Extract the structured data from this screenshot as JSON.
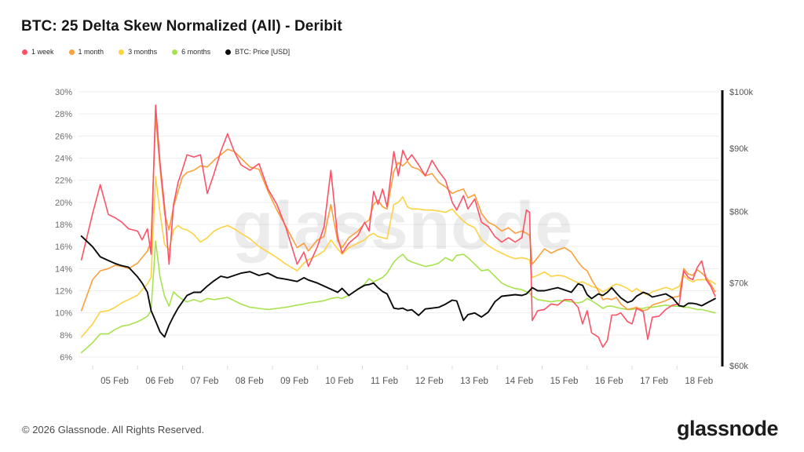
{
  "header": {
    "title": "BTC: 25 Delta Skew Normalized (All) - Deribit"
  },
  "watermark": "glassnode",
  "footer": {
    "copyright": "© 2026 Glassnode. All Rights Reserved.",
    "logo_text": "glassnode"
  },
  "colors": {
    "week1": "#fb5268",
    "month1": "#f9a03c",
    "months3": "#fdd243",
    "months6": "#a7e34e",
    "price": "#0a0a0a",
    "gridline": "#eeeeee",
    "axis_text": "#6e6e6e",
    "x_axis_text": "#555555",
    "tick_mark": "#d9d9d9",
    "watermark_fill": "#000000"
  },
  "chart_data": {
    "type": "line",
    "title": "BTC: 25 Delta Skew Normalized (All) - Deribit",
    "x_unit": "day of February",
    "grid": true,
    "legend_position": "top-left",
    "left_axis": {
      "unit": "%",
      "ticks": [
        30,
        28,
        26,
        24,
        22,
        20,
        18,
        16,
        14,
        12,
        10,
        8,
        6
      ],
      "tick_suffix": "%"
    },
    "right_axis": {
      "unit": "USD",
      "scale": "log",
      "range": [
        60000,
        100000
      ],
      "ticks": [
        {
          "label": "$100k",
          "value": 100000
        },
        {
          "label": "$90k",
          "value": 90000
        },
        {
          "label": "$80k",
          "value": 80000
        },
        {
          "label": "$70k",
          "value": 70000
        },
        {
          "label": "$60k",
          "value": 60000
        }
      ]
    },
    "x_ticks": [
      {
        "day": 5,
        "label": "05 Feb"
      },
      {
        "day": 6,
        "label": "06 Feb"
      },
      {
        "day": 7,
        "label": "07 Feb"
      },
      {
        "day": 8,
        "label": "08 Feb"
      },
      {
        "day": 9,
        "label": "09 Feb"
      },
      {
        "day": 10,
        "label": "10 Feb"
      },
      {
        "day": 11,
        "label": "11 Feb"
      },
      {
        "day": 12,
        "label": "12 Feb"
      },
      {
        "day": 13,
        "label": "13 Feb"
      },
      {
        "day": 14,
        "label": "14 Feb"
      },
      {
        "day": 15,
        "label": "15 Feb"
      },
      {
        "day": 16,
        "label": "16 Feb"
      },
      {
        "day": 17,
        "label": "17 Feb"
      },
      {
        "day": 18,
        "label": "18 Feb"
      }
    ],
    "x": [
      4.75,
      5.0,
      5.17,
      5.35,
      5.5,
      5.65,
      5.8,
      6.0,
      6.1,
      6.22,
      6.3,
      6.4,
      6.5,
      6.6,
      6.7,
      6.8,
      6.9,
      7.0,
      7.1,
      7.25,
      7.4,
      7.55,
      7.7,
      7.85,
      8.0,
      8.15,
      8.3,
      8.5,
      8.7,
      8.9,
      9.1,
      9.3,
      9.55,
      9.7,
      9.8,
      10.0,
      10.15,
      10.3,
      10.45,
      10.55,
      10.7,
      10.9,
      11.05,
      11.15,
      11.25,
      11.35,
      11.45,
      11.55,
      11.7,
      11.8,
      11.9,
      12.0,
      12.1,
      12.25,
      12.4,
      12.55,
      12.7,
      12.85,
      13.0,
      13.1,
      13.25,
      13.35,
      13.5,
      13.65,
      13.8,
      13.95,
      14.1,
      14.25,
      14.4,
      14.55,
      14.65,
      14.72,
      14.78,
      14.9,
      15.05,
      15.2,
      15.35,
      15.5,
      15.65,
      15.8,
      15.9,
      16.0,
      16.1,
      16.25,
      16.35,
      16.45,
      16.55,
      16.65,
      16.75,
      16.9,
      17.0,
      17.1,
      17.25,
      17.35,
      17.45,
      17.6,
      17.75,
      17.9,
      18.05,
      18.15,
      18.25,
      18.35,
      18.45,
      18.55,
      18.65,
      18.75,
      18.85
    ],
    "series": [
      {
        "name": "1 week",
        "key": "week1",
        "axis": "left",
        "values": [
          14.8,
          19.0,
          21.6,
          18.9,
          18.6,
          18.2,
          17.6,
          17.4,
          16.6,
          17.6,
          15.3,
          28.8,
          23.5,
          19.6,
          14.4,
          19.8,
          21.8,
          23.0,
          24.3,
          24.1,
          24.3,
          20.8,
          22.6,
          24.6,
          26.2,
          24.6,
          23.4,
          22.9,
          23.5,
          21.2,
          19.8,
          17.7,
          14.4,
          15.5,
          14.2,
          16.0,
          17.8,
          22.9,
          16.9,
          15.4,
          16.3,
          17.0,
          18.2,
          17.4,
          21.0,
          19.8,
          21.2,
          19.6,
          24.6,
          22.4,
          24.7,
          23.8,
          24.3,
          23.4,
          22.4,
          23.8,
          22.8,
          22.0,
          20.0,
          19.3,
          20.6,
          19.4,
          20.3,
          18.2,
          17.8,
          16.9,
          16.4,
          16.8,
          16.4,
          16.8,
          19.3,
          19.1,
          9.3,
          10.2,
          10.3,
          10.8,
          10.7,
          11.2,
          11.2,
          10.5,
          9.0,
          10.2,
          8.2,
          7.8,
          6.9,
          7.5,
          9.8,
          9.8,
          10.0,
          9.2,
          9.0,
          10.4,
          10.1,
          7.6,
          9.6,
          9.7,
          10.3,
          10.7,
          10.8,
          13.8,
          13.2,
          13.0,
          14.1,
          14.7,
          13.0,
          12.4,
          11.5
        ]
      },
      {
        "name": "1 month",
        "key": "month1",
        "axis": "left",
        "values": [
          10.2,
          13.0,
          13.8,
          14.0,
          14.3,
          14.2,
          14.0,
          14.5,
          15.0,
          15.6,
          16.5,
          27.7,
          23.0,
          19.0,
          17.5,
          19.6,
          21.0,
          22.3,
          22.7,
          22.9,
          23.3,
          23.2,
          23.8,
          24.3,
          24.8,
          24.6,
          24.0,
          23.2,
          23.0,
          21.0,
          19.3,
          17.8,
          15.9,
          16.3,
          15.6,
          16.6,
          16.9,
          19.8,
          16.5,
          15.9,
          16.8,
          17.4,
          18.1,
          18.4,
          19.8,
          20.2,
          19.6,
          19.4,
          22.8,
          23.6,
          23.3,
          23.7,
          23.2,
          23.0,
          22.4,
          22.6,
          21.8,
          21.4,
          20.8,
          21.0,
          21.2,
          20.4,
          20.7,
          19.0,
          18.2,
          17.9,
          17.4,
          17.7,
          17.2,
          17.4,
          17.2,
          17.0,
          14.4,
          15.0,
          15.8,
          15.4,
          15.7,
          15.9,
          15.5,
          14.6,
          14.1,
          13.8,
          13.0,
          12.0,
          11.2,
          11.3,
          11.2,
          11.4,
          10.8,
          10.3,
          10.4,
          10.5,
          10.2,
          10.3,
          10.7,
          10.9,
          11.1,
          11.4,
          11.5,
          14.0,
          13.5,
          13.4,
          13.9,
          13.6,
          13.2,
          12.6,
          11.9
        ]
      },
      {
        "name": "3 months",
        "key": "months3",
        "axis": "left",
        "values": [
          7.8,
          9.0,
          10.1,
          10.2,
          10.5,
          10.9,
          11.2,
          11.6,
          12.1,
          12.6,
          13.2,
          22.3,
          19.0,
          16.2,
          15.7,
          17.5,
          17.9,
          17.6,
          17.5,
          17.1,
          16.4,
          16.8,
          17.4,
          17.7,
          17.9,
          17.6,
          17.2,
          16.7,
          16.0,
          15.5,
          15.0,
          14.4,
          13.8,
          14.5,
          14.8,
          15.2,
          15.6,
          16.6,
          15.8,
          15.3,
          15.9,
          16.3,
          16.6,
          17.0,
          17.2,
          16.9,
          16.8,
          16.7,
          19.8,
          20.0,
          20.5,
          19.6,
          19.4,
          19.4,
          19.3,
          19.3,
          19.2,
          19.1,
          19.4,
          18.9,
          18.3,
          18.0,
          17.7,
          16.6,
          16.1,
          15.7,
          15.4,
          15.1,
          14.9,
          15.0,
          14.9,
          14.8,
          13.2,
          13.4,
          13.7,
          13.3,
          13.4,
          13.3,
          13.0,
          12.7,
          12.8,
          12.6,
          12.4,
          12.2,
          11.9,
          12.1,
          12.4,
          12.6,
          12.5,
          12.2,
          11.9,
          12.2,
          11.8,
          11.6,
          11.9,
          12.1,
          12.3,
          12.1,
          12.4,
          13.4,
          13.0,
          12.8,
          13.0,
          13.0,
          13.0,
          12.9,
          12.6
        ]
      },
      {
        "name": "6 months",
        "key": "months6",
        "axis": "left",
        "values": [
          6.4,
          7.3,
          8.1,
          8.1,
          8.5,
          8.8,
          8.9,
          9.2,
          9.4,
          9.7,
          10.2,
          16.5,
          13.2,
          11.5,
          10.6,
          11.9,
          11.5,
          11.2,
          11.0,
          11.2,
          11.0,
          11.3,
          11.2,
          11.3,
          11.4,
          11.1,
          10.8,
          10.5,
          10.4,
          10.3,
          10.4,
          10.5,
          10.7,
          10.8,
          10.9,
          11.0,
          11.1,
          11.3,
          11.4,
          11.3,
          11.6,
          12.1,
          12.6,
          13.1,
          12.8,
          13.0,
          13.2,
          13.6,
          14.6,
          15.0,
          15.3,
          14.8,
          14.6,
          14.4,
          14.2,
          14.3,
          14.5,
          15.0,
          14.7,
          15.2,
          15.3,
          15.0,
          14.4,
          13.8,
          13.9,
          13.3,
          12.7,
          12.4,
          12.2,
          12.1,
          11.9,
          11.8,
          11.5,
          11.2,
          11.1,
          11.0,
          11.1,
          11.1,
          11.0,
          10.9,
          11.0,
          11.3,
          11.1,
          10.7,
          10.4,
          10.6,
          10.6,
          10.5,
          10.4,
          10.3,
          10.3,
          10.4,
          10.4,
          10.5,
          10.5,
          10.6,
          10.7,
          10.6,
          10.6,
          10.5,
          10.5,
          10.4,
          10.3,
          10.3,
          10.2,
          10.1,
          10.0
        ]
      },
      {
        "name": "BTC: Price [USD]",
        "key": "price",
        "axis": "right",
        "values": [
          76400,
          74900,
          73500,
          73000,
          72600,
          72300,
          72100,
          70800,
          70000,
          68800,
          66500,
          65200,
          63900,
          63300,
          64700,
          65800,
          66800,
          67600,
          68400,
          68800,
          68800,
          69600,
          70300,
          70900,
          70700,
          71000,
          71300,
          71500,
          71000,
          71300,
          70700,
          70500,
          70200,
          70700,
          70400,
          70000,
          69600,
          69200,
          68800,
          69300,
          68400,
          69200,
          69700,
          69800,
          70000,
          69400,
          68900,
          68600,
          66800,
          66700,
          66800,
          66500,
          66600,
          65900,
          66700,
          66800,
          66900,
          67300,
          67800,
          67700,
          65300,
          66000,
          66200,
          65700,
          66300,
          67600,
          68300,
          68400,
          68500,
          68400,
          68600,
          69000,
          69400,
          69000,
          69000,
          69200,
          69400,
          69100,
          68800,
          69900,
          69700,
          68500,
          68000,
          68600,
          68400,
          68800,
          69400,
          68700,
          68100,
          67500,
          67700,
          68300,
          68800,
          68600,
          68200,
          68400,
          68600,
          68100,
          67100,
          67000,
          67400,
          67400,
          67300,
          67100,
          67400,
          67700,
          68000
        ]
      }
    ]
  },
  "legend": {
    "items": [
      {
        "label": "1 week",
        "color": "#fb5268"
      },
      {
        "label": "1 month",
        "color": "#f9a03c"
      },
      {
        "label": "3 months",
        "color": "#fdd243"
      },
      {
        "label": "6 months",
        "color": "#a7e34e"
      },
      {
        "label": "BTC: Price [USD]",
        "color": "#0a0a0a"
      }
    ]
  }
}
